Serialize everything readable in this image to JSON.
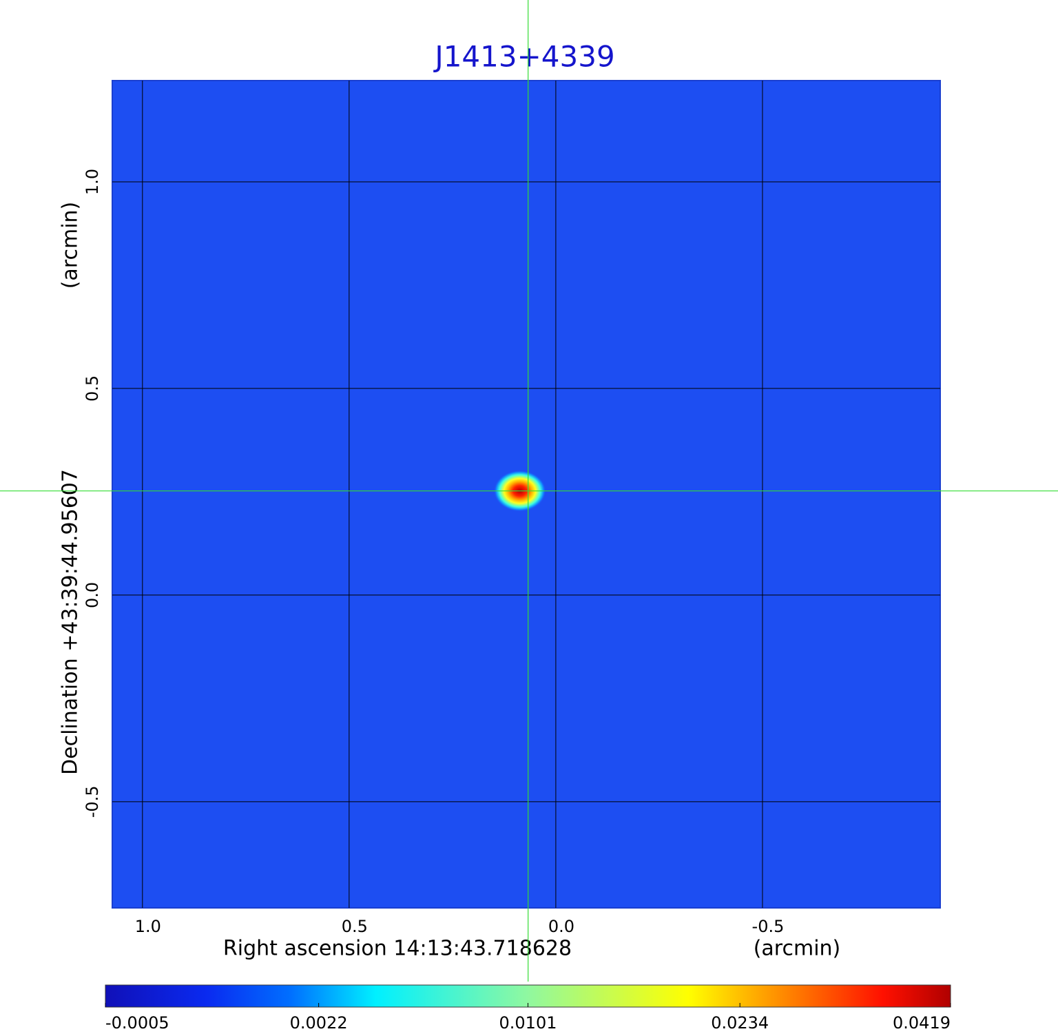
{
  "chart_data": {
    "type": "image",
    "title": "J1413+4339",
    "x_label": "Right ascension  14:13:43.718628",
    "x_unit": "(arcmin)",
    "y_label": "Declination  +43:39:44.95607",
    "y_unit": "(arcmin)",
    "xlim": [
      1.073,
      -0.93
    ],
    "ylim": [
      -0.757,
      1.245
    ],
    "xticks": [
      {
        "value": 1,
        "label": "1.0"
      },
      0.5,
      {
        "value": 0,
        "label": "0.0"
      },
      -0.5
    ],
    "yticks": [
      {
        "value": 1,
        "label": "1.0"
      },
      0.5,
      {
        "value": 0,
        "label": "0.0"
      },
      -0.5
    ],
    "grid": true,
    "background_color": "#1d4ef2",
    "peak": {
      "x": 0.087,
      "y": 0.252,
      "value": 0.0419
    },
    "crosshair": {
      "x": 0.067,
      "y": 0.252,
      "color": "#33dd33"
    },
    "colorbar": {
      "clim": [
        -0.0005,
        0.0419
      ],
      "scale": "sqrt",
      "ticks": [
        -0.0005,
        0.0022,
        0.0101,
        0.0234,
        0.0419
      ]
    }
  }
}
